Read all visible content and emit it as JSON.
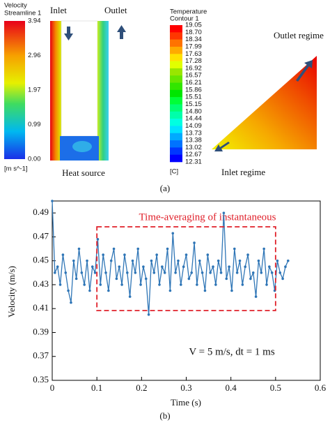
{
  "panel_a": {
    "label": "(a)",
    "velocity_colorbar": {
      "title": "Velocity",
      "subtitle": "Streamline 1",
      "tick_labels": [
        "3.94",
        "2.96",
        "1.97",
        "0.99",
        "0.00"
      ],
      "units": "[m s^-1]"
    },
    "tube_labels": {
      "inlet": "Inlet",
      "outlet": "Outlet",
      "bottom": "Heat source"
    },
    "temperature_colorbar": {
      "title": "Temperature",
      "subtitle": "Contour 1",
      "tick_labels": [
        "19.05",
        "18.70",
        "18.34",
        "17.99",
        "17.63",
        "17.28",
        "16.92",
        "16.57",
        "16.21",
        "15.86",
        "15.51",
        "15.15",
        "14.80",
        "14.44",
        "14.09",
        "13.73",
        "13.38",
        "13.02",
        "12.67",
        "12.31"
      ],
      "units": "[C]"
    },
    "triangle_labels": {
      "outlet": "Outlet regime",
      "inlet": "Inlet regime"
    }
  },
  "chart_data": {
    "type": "line",
    "panel_label": "(b)",
    "xlabel": "Time (s)",
    "ylabel": "Velocity (m/s)",
    "annotation": "Time-averaging of instantaneous",
    "averaging_window": [
      0.1,
      0.5
    ],
    "note": "V = 5 m/s, dt = 1 ms",
    "color": "#2e75b6",
    "xlim": [
      0,
      0.6
    ],
    "xticks": [
      0,
      0.1,
      0.2,
      0.3,
      0.4,
      0.5,
      0.6
    ],
    "ylim": [
      0.35,
      0.5
    ],
    "yticks": [
      0.35,
      0.37,
      0.39,
      0.41,
      0.43,
      0.45,
      0.47,
      0.49
    ],
    "x": [
      0,
      0.006,
      0.012,
      0.018,
      0.024,
      0.03,
      0.036,
      0.042,
      0.048,
      0.054,
      0.06,
      0.066,
      0.072,
      0.078,
      0.084,
      0.09,
      0.096,
      0.102,
      0.108,
      0.114,
      0.12,
      0.126,
      0.132,
      0.138,
      0.144,
      0.15,
      0.156,
      0.162,
      0.168,
      0.174,
      0.18,
      0.186,
      0.192,
      0.198,
      0.204,
      0.21,
      0.216,
      0.222,
      0.228,
      0.234,
      0.24,
      0.246,
      0.252,
      0.258,
      0.264,
      0.27,
      0.276,
      0.282,
      0.288,
      0.294,
      0.3,
      0.306,
      0.312,
      0.318,
      0.324,
      0.33,
      0.336,
      0.342,
      0.348,
      0.354,
      0.36,
      0.366,
      0.372,
      0.378,
      0.384,
      0.39,
      0.396,
      0.402,
      0.408,
      0.414,
      0.42,
      0.426,
      0.432,
      0.438,
      0.444,
      0.45,
      0.456,
      0.462,
      0.468,
      0.474,
      0.48,
      0.486,
      0.492,
      0.498,
      0.504,
      0.51,
      0.516,
      0.522,
      0.528
    ],
    "values": [
      0.5,
      0.44,
      0.445,
      0.43,
      0.455,
      0.44,
      0.425,
      0.415,
      0.45,
      0.435,
      0.46,
      0.44,
      0.43,
      0.45,
      0.425,
      0.445,
      0.44,
      0.468,
      0.43,
      0.455,
      0.44,
      0.425,
      0.45,
      0.46,
      0.435,
      0.445,
      0.43,
      0.455,
      0.44,
      0.42,
      0.45,
      0.44,
      0.46,
      0.43,
      0.445,
      0.435,
      0.405,
      0.45,
      0.44,
      0.455,
      0.43,
      0.445,
      0.44,
      0.46,
      0.425,
      0.473,
      0.44,
      0.45,
      0.43,
      0.445,
      0.455,
      0.435,
      0.44,
      0.465,
      0.43,
      0.45,
      0.44,
      0.425,
      0.455,
      0.44,
      0.445,
      0.43,
      0.45,
      0.44,
      0.49,
      0.435,
      0.445,
      0.425,
      0.46,
      0.44,
      0.45,
      0.43,
      0.445,
      0.455,
      0.435,
      0.44,
      0.42,
      0.45,
      0.44,
      0.46,
      0.43,
      0.445,
      0.44,
      0.425,
      0.45,
      0.44,
      0.435,
      0.445,
      0.45
    ]
  }
}
